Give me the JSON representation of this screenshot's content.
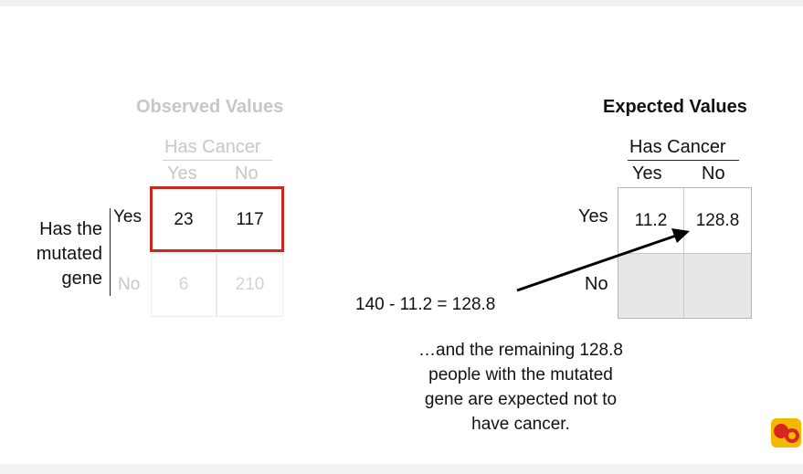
{
  "observed": {
    "title": "Observed Values",
    "col_header": "Has Cancer",
    "col_labels": [
      "Yes",
      "No"
    ],
    "row_header": [
      "Has the",
      "mutated",
      "gene"
    ],
    "row_labels": [
      "Yes",
      "No"
    ],
    "cells": [
      [
        "23",
        "117"
      ],
      [
        "6",
        "210"
      ]
    ]
  },
  "expected": {
    "title": "Expected Values",
    "col_header": "Has Cancer",
    "col_labels": [
      "Yes",
      "No"
    ],
    "row_labels": [
      "Yes",
      "No"
    ],
    "cells": [
      [
        "11.2",
        "128.8"
      ],
      [
        "",
        ""
      ]
    ]
  },
  "annotation": {
    "equation": "140 - 11.2 = 128.8",
    "explanation": [
      "…and the remaining 128.8",
      "people with the mutated",
      "gene are expected not to",
      "have cancer."
    ]
  },
  "logo": {
    "name": "statquest-logo-icon",
    "colors": [
      "#f5b800",
      "#d7261e"
    ]
  }
}
